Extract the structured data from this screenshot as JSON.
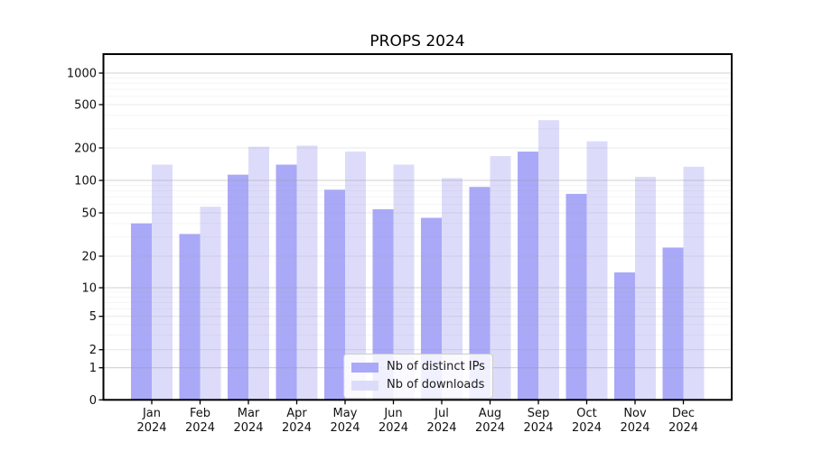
{
  "title": "PROPS 2024",
  "legend": {
    "items": [
      {
        "label": "Nb of distinct IPs",
        "color": "#a9a9f8"
      },
      {
        "label": "Nb of downloads",
        "color": "#dcdcfa"
      }
    ]
  },
  "chart_data": {
    "type": "bar",
    "title": "PROPS 2024",
    "yscale": "symlog",
    "ylim": [
      0,
      1500
    ],
    "grid": true,
    "legend_position": "lower center",
    "year": "2024",
    "months": [
      "Jan",
      "Feb",
      "Mar",
      "Apr",
      "May",
      "Jun",
      "Jul",
      "Aug",
      "Sep",
      "Oct",
      "Nov",
      "Dec"
    ],
    "categories": [
      "Jan 2024",
      "Feb 2024",
      "Mar 2024",
      "Apr 2024",
      "May 2024",
      "Jun 2024",
      "Jul 2024",
      "Aug 2024",
      "Sep 2024",
      "Oct 2024",
      "Nov 2024",
      "Dec 2024"
    ],
    "yticks": [
      0,
      1,
      2,
      5,
      10,
      20,
      50,
      100,
      200,
      500,
      1000
    ],
    "series": [
      {
        "name": "Nb of distinct IPs",
        "color": "#a9a9f8",
        "values": [
          40,
          32,
          113,
          140,
          82,
          54,
          45,
          87,
          185,
          75,
          14,
          24
        ]
      },
      {
        "name": "Nb of downloads",
        "color": "#dcdcfa",
        "values": [
          140,
          57,
          205,
          210,
          185,
          140,
          105,
          168,
          360,
          230,
          108,
          134
        ]
      }
    ]
  }
}
